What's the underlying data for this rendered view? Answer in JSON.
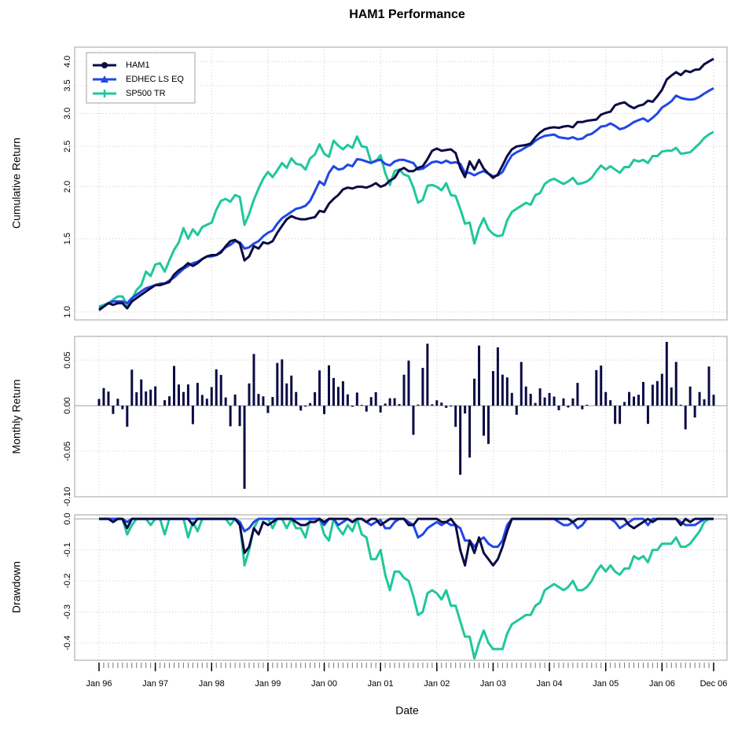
{
  "chart_data": [
    {
      "type": "line",
      "title": "HAM1 Performance",
      "ylabel": "Cumulative Return",
      "log_scale": true,
      "grid": true,
      "legend": "top-left",
      "ylim": [
        0.957,
        4.33
      ],
      "yticks": [
        {
          "value": 1,
          "label": "1.0"
        },
        1.5,
        {
          "value": 2,
          "label": "2.0"
        },
        2.5,
        {
          "value": 3,
          "label": "3.0"
        },
        3.5,
        {
          "value": 4,
          "label": "4.0"
        }
      ],
      "series": [
        {
          "name": "HAM1",
          "color": "#0b0b45",
          "marker": "circle",
          "values": [
            1.01,
            1.03,
            1.05,
            1.04,
            1.05,
            1.05,
            1.02,
            1.06,
            1.08,
            1.1,
            1.12,
            1.14,
            1.16,
            1.16,
            1.17,
            1.18,
            1.23,
            1.26,
            1.28,
            1.31,
            1.29,
            1.31,
            1.34,
            1.36,
            1.37,
            1.37,
            1.39,
            1.44,
            1.48,
            1.49,
            1.46,
            1.33,
            1.36,
            1.44,
            1.42,
            1.47,
            1.46,
            1.48,
            1.55,
            1.61,
            1.67,
            1.7,
            1.68,
            1.67,
            1.67,
            1.68,
            1.69,
            1.75,
            1.74,
            1.82,
            1.87,
            1.91,
            1.97,
            1.99,
            1.98,
            2.0,
            2.0,
            1.99,
            2.01,
            2.04,
            2.0,
            2.02,
            2.07,
            2.1,
            2.19,
            2.22,
            2.18,
            2.18,
            2.22,
            2.24,
            2.33,
            2.44,
            2.47,
            2.44,
            2.45,
            2.46,
            2.41,
            2.22,
            2.11,
            2.3,
            2.2,
            2.32,
            2.21,
            2.15,
            2.1,
            2.14,
            2.25,
            2.37,
            2.46,
            2.5,
            2.51,
            2.52,
            2.54,
            2.63,
            2.7,
            2.75,
            2.77,
            2.78,
            2.77,
            2.79,
            2.8,
            2.78,
            2.86,
            2.86,
            2.88,
            2.89,
            2.9,
            2.98,
            3.01,
            3.03,
            3.14,
            3.17,
            3.19,
            3.13,
            3.09,
            3.13,
            3.15,
            3.22,
            3.2,
            3.3,
            3.42,
            3.62,
            3.7,
            3.77,
            3.71,
            3.8,
            3.77,
            3.82,
            3.83,
            3.94,
            4.0,
            4.06
          ]
        },
        {
          "name": "EDHEC LS EQ",
          "color": "#2047e6",
          "marker": "triangle",
          "values": [
            1.02,
            1.03,
            1.05,
            1.06,
            1.06,
            1.06,
            1.05,
            1.08,
            1.1,
            1.12,
            1.14,
            1.15,
            1.16,
            1.17,
            1.17,
            1.19,
            1.21,
            1.24,
            1.27,
            1.29,
            1.31,
            1.32,
            1.34,
            1.36,
            1.36,
            1.37,
            1.4,
            1.43,
            1.45,
            1.48,
            1.47,
            1.42,
            1.43,
            1.46,
            1.48,
            1.52,
            1.55,
            1.57,
            1.63,
            1.68,
            1.71,
            1.74,
            1.77,
            1.78,
            1.8,
            1.85,
            1.95,
            2.06,
            2.02,
            2.16,
            2.24,
            2.2,
            2.21,
            2.26,
            2.24,
            2.33,
            2.32,
            2.3,
            2.28,
            2.31,
            2.32,
            2.27,
            2.25,
            2.3,
            2.32,
            2.32,
            2.3,
            2.28,
            2.2,
            2.21,
            2.25,
            2.29,
            2.3,
            2.28,
            2.31,
            2.28,
            2.29,
            2.27,
            2.16,
            2.16,
            2.13,
            2.16,
            2.18,
            2.15,
            2.12,
            2.13,
            2.17,
            2.28,
            2.38,
            2.42,
            2.45,
            2.49,
            2.52,
            2.58,
            2.62,
            2.65,
            2.66,
            2.67,
            2.63,
            2.62,
            2.61,
            2.63,
            2.6,
            2.61,
            2.66,
            2.68,
            2.73,
            2.79,
            2.8,
            2.84,
            2.8,
            2.75,
            2.77,
            2.81,
            2.86,
            2.89,
            2.92,
            2.87,
            2.93,
            3.0,
            3.1,
            3.15,
            3.21,
            3.31,
            3.27,
            3.25,
            3.24,
            3.25,
            3.29,
            3.35,
            3.4,
            3.45
          ]
        },
        {
          "name": "SP500 TR",
          "color": "#1fc79c",
          "marker": "plus",
          "values": [
            1.03,
            1.04,
            1.05,
            1.07,
            1.09,
            1.09,
            1.04,
            1.07,
            1.13,
            1.16,
            1.25,
            1.22,
            1.3,
            1.31,
            1.25,
            1.33,
            1.41,
            1.47,
            1.59,
            1.5,
            1.58,
            1.53,
            1.6,
            1.62,
            1.64,
            1.76,
            1.85,
            1.87,
            1.84,
            1.91,
            1.89,
            1.62,
            1.72,
            1.86,
            1.98,
            2.09,
            2.17,
            2.11,
            2.19,
            2.28,
            2.22,
            2.34,
            2.27,
            2.26,
            2.2,
            2.34,
            2.39,
            2.53,
            2.4,
            2.36,
            2.58,
            2.51,
            2.46,
            2.52,
            2.48,
            2.64,
            2.5,
            2.49,
            2.29,
            2.3,
            2.38,
            2.16,
            2.02,
            2.18,
            2.2,
            2.14,
            2.12,
            1.99,
            1.83,
            1.86,
            2.01,
            2.02,
            2.0,
            1.96,
            2.04,
            1.91,
            1.9,
            1.77,
            1.63,
            1.64,
            1.46,
            1.59,
            1.68,
            1.58,
            1.54,
            1.52,
            1.53,
            1.66,
            1.74,
            1.77,
            1.8,
            1.83,
            1.81,
            1.91,
            1.93,
            2.03,
            2.07,
            2.09,
            2.06,
            2.03,
            2.06,
            2.1,
            2.03,
            2.04,
            2.06,
            2.1,
            2.18,
            2.25,
            2.2,
            2.24,
            2.2,
            2.16,
            2.23,
            2.23,
            2.32,
            2.3,
            2.32,
            2.28,
            2.37,
            2.37,
            2.43,
            2.44,
            2.44,
            2.48,
            2.4,
            2.41,
            2.42,
            2.48,
            2.54,
            2.62,
            2.67,
            2.71
          ]
        }
      ]
    },
    {
      "type": "bar",
      "ylabel": "Monthly Return",
      "grid": true,
      "color": "#0b0b45",
      "ylim": [
        -0.1,
        0.076
      ],
      "yticks": [
        {
          "value": -0.1,
          "label": "-0.10"
        },
        -0.05,
        {
          "value": 0,
          "label": "0.00"
        },
        0.05
      ],
      "values": [
        0.0074,
        0.0193,
        0.0155,
        -0.0091,
        0.0076,
        -0.0039,
        -0.0231,
        0.0395,
        0.0147,
        0.0288,
        0.0156,
        0.0176,
        0.0212,
        -0.0001,
        0.006,
        0.0103,
        0.0436,
        0.0232,
        0.015,
        0.0233,
        -0.0203,
        0.025,
        0.0118,
        0.0076,
        0.0204,
        0.0399,
        0.0337,
        0.009,
        -0.0227,
        0.0122,
        -0.0225,
        -0.0913,
        0.0244,
        0.0567,
        0.0129,
        0.0102,
        -0.0081,
        0.0095,
        0.0469,
        0.0508,
        0.0244,
        0.033,
        0.015,
        -0.0054,
        -0.0011,
        0.0028,
        0.0148,
        0.0387,
        -0.0093,
        0.0443,
        0.0304,
        0.0206,
        0.0268,
        0.0124,
        -0.0012,
        0.0144,
        0.0009,
        -0.0065,
        0.0094,
        0.0148,
        -0.0075,
        0.0023,
        0.0081,
        0.0082,
        0.0017,
        0.034,
        0.0495,
        -0.032,
        0.0012,
        0.0415,
        0.068,
        0.0015,
        0.0059,
        0.0034,
        -0.0024,
        -0.001,
        -0.0232,
        -0.0758,
        -0.0086,
        -0.057,
        0.0296,
        0.066,
        -0.033,
        -0.042,
        0.038,
        0.064,
        0.034,
        0.031,
        0.014,
        -0.01,
        0.048,
        0.021,
        0.013,
        0.003,
        0.019,
        0.009,
        0.014,
        0.01,
        -0.005,
        0.008,
        -0.002,
        0.008,
        0.025,
        -0.004,
        0.001,
        0.0,
        0.039,
        0.044,
        0.015,
        0.006,
        -0.02,
        -0.02,
        0.004,
        0.015,
        0.01,
        0.012,
        0.026,
        -0.02,
        0.023,
        0.027,
        0.035,
        0.07,
        0.02,
        0.048,
        0.001,
        -0.026,
        0.021,
        -0.013,
        0.015,
        0.007,
        0.043,
        0.012
      ]
    },
    {
      "type": "line",
      "ylabel": "Drawdown",
      "xlabel": "Date",
      "grid": true,
      "ylim": [
        -0.456,
        0.013
      ],
      "yticks": [
        -0.4,
        -0.3,
        -0.2,
        -0.1,
        {
          "value": 0,
          "label": "0.0"
        }
      ],
      "categories": [
        "Jan 96",
        null,
        null,
        null,
        null,
        null,
        null,
        null,
        null,
        null,
        null,
        null,
        "Jan 97",
        null,
        null,
        null,
        null,
        null,
        null,
        null,
        null,
        null,
        null,
        null,
        "Jan 98",
        null,
        null,
        null,
        null,
        null,
        null,
        null,
        null,
        null,
        null,
        null,
        "Jan 99",
        null,
        null,
        null,
        null,
        null,
        null,
        null,
        null,
        null,
        null,
        null,
        "Jan 00",
        null,
        null,
        null,
        null,
        null,
        null,
        null,
        null,
        null,
        null,
        null,
        "Jan 01",
        null,
        null,
        null,
        null,
        null,
        null,
        null,
        null,
        null,
        null,
        null,
        "Jan 02",
        null,
        null,
        null,
        null,
        null,
        null,
        null,
        null,
        null,
        null,
        null,
        "Jan 03",
        null,
        null,
        null,
        null,
        null,
        null,
        null,
        null,
        null,
        null,
        null,
        "Jan 04",
        null,
        null,
        null,
        null,
        null,
        null,
        null,
        null,
        null,
        null,
        null,
        "Jan 05",
        null,
        null,
        null,
        null,
        null,
        null,
        null,
        null,
        null,
        null,
        null,
        "Jan 06",
        null,
        null,
        null,
        null,
        null,
        null,
        null,
        null,
        null,
        null,
        "Dec 06"
      ],
      "series": [
        {
          "color": "#0b0b45",
          "values": [
            0,
            0,
            0,
            -0.01,
            0,
            0,
            -0.03,
            0,
            0,
            0,
            0,
            0,
            0,
            0,
            0,
            0,
            0,
            0,
            0,
            0,
            -0.02,
            0,
            0,
            0,
            0,
            0,
            0,
            0,
            0,
            0,
            -0.02,
            -0.11,
            -0.09,
            -0.03,
            -0.05,
            -0.01,
            -0.02,
            -0.01,
            0,
            0,
            0,
            0,
            -0.01,
            -0.02,
            -0.02,
            -0.01,
            -0.01,
            0,
            -0.01,
            0,
            0,
            0,
            0,
            0,
            -0.01,
            0,
            0,
            -0.01,
            0,
            0,
            -0.02,
            -0.01,
            0,
            0,
            0,
            0,
            -0.02,
            -0.02,
            0,
            0,
            0,
            0,
            0,
            -0.01,
            -0.01,
            0,
            -0.02,
            -0.1,
            -0.15,
            -0.07,
            -0.11,
            -0.06,
            -0.11,
            -0.13,
            -0.15,
            -0.13,
            -0.09,
            -0.04,
            0,
            0,
            0,
            0,
            0,
            0,
            0,
            0,
            0,
            0,
            0,
            0,
            0,
            -0.01,
            0,
            0,
            0,
            0,
            0,
            0,
            0,
            0,
            0,
            0,
            0,
            -0.02,
            -0.03,
            -0.02,
            -0.01,
            0,
            -0.01,
            0,
            0,
            0,
            0,
            0,
            -0.02,
            0,
            -0.01,
            0,
            0,
            0,
            0,
            0
          ]
        },
        {
          "color": "#2047e6",
          "values": [
            0,
            0,
            0,
            0,
            0,
            0,
            -0.01,
            0,
            0,
            0,
            0,
            0,
            0,
            0,
            0,
            0,
            0,
            0,
            0,
            0,
            0,
            0,
            0,
            0,
            0,
            0,
            0,
            0,
            0,
            0,
            -0.01,
            -0.04,
            -0.03,
            -0.01,
            0,
            0,
            0,
            0,
            0,
            0,
            0,
            0,
            0,
            0,
            0,
            0,
            0,
            0,
            -0.02,
            0,
            0,
            -0.02,
            -0.01,
            0,
            -0.01,
            0,
            0,
            -0.01,
            -0.02,
            -0.01,
            -0.004,
            -0.03,
            -0.03,
            -0.01,
            0,
            0,
            -0.01,
            -0.02,
            -0.06,
            -0.05,
            -0.03,
            -0.02,
            -0.01,
            -0.02,
            -0.01,
            -0.02,
            -0.02,
            -0.03,
            -0.07,
            -0.07,
            -0.09,
            -0.07,
            -0.06,
            -0.08,
            -0.09,
            -0.09,
            -0.07,
            -0.02,
            0,
            0,
            0,
            0,
            0,
            0,
            0,
            0,
            0,
            0,
            -0.01,
            -0.02,
            -0.02,
            -0.01,
            -0.03,
            -0.02,
            0,
            0,
            0,
            0,
            0,
            0,
            -0.01,
            -0.03,
            -0.02,
            -0.01,
            0,
            0,
            0,
            -0.02,
            0,
            0,
            0,
            0,
            0,
            0,
            -0.01,
            -0.02,
            -0.02,
            -0.02,
            -0.01,
            0,
            0,
            0
          ]
        },
        {
          "color": "#1fc79c",
          "values": [
            0,
            0,
            0,
            0,
            0,
            0,
            -0.05,
            -0.02,
            0,
            0,
            0,
            -0.02,
            0,
            0,
            -0.05,
            0,
            0,
            0,
            0,
            -0.06,
            -0.01,
            -0.04,
            0,
            0,
            0,
            0,
            0,
            0,
            -0.02,
            0,
            -0.01,
            -0.15,
            -0.1,
            -0.03,
            0,
            0,
            0,
            -0.03,
            0,
            0,
            -0.03,
            0,
            -0.03,
            -0.03,
            -0.06,
            0,
            0,
            0,
            -0.05,
            -0.07,
            0,
            -0.03,
            -0.05,
            -0.02,
            -0.04,
            0,
            -0.05,
            -0.06,
            -0.13,
            -0.13,
            -0.1,
            -0.18,
            -0.23,
            -0.17,
            -0.17,
            -0.19,
            -0.2,
            -0.25,
            -0.31,
            -0.3,
            -0.24,
            -0.23,
            -0.24,
            -0.26,
            -0.23,
            -0.28,
            -0.28,
            -0.33,
            -0.38,
            -0.38,
            -0.45,
            -0.4,
            -0.36,
            -0.4,
            -0.42,
            -0.42,
            -0.42,
            -0.37,
            -0.34,
            -0.33,
            -0.32,
            -0.31,
            -0.31,
            -0.28,
            -0.27,
            -0.23,
            -0.22,
            -0.21,
            -0.22,
            -0.23,
            -0.22,
            -0.2,
            -0.23,
            -0.23,
            -0.22,
            -0.2,
            -0.17,
            -0.15,
            -0.17,
            -0.15,
            -0.17,
            -0.18,
            -0.16,
            -0.16,
            -0.12,
            -0.13,
            -0.12,
            -0.14,
            -0.1,
            -0.1,
            -0.08,
            -0.08,
            -0.08,
            -0.06,
            -0.09,
            -0.09,
            -0.08,
            -0.06,
            -0.04,
            -0.01,
            0,
            0
          ]
        }
      ]
    }
  ]
}
